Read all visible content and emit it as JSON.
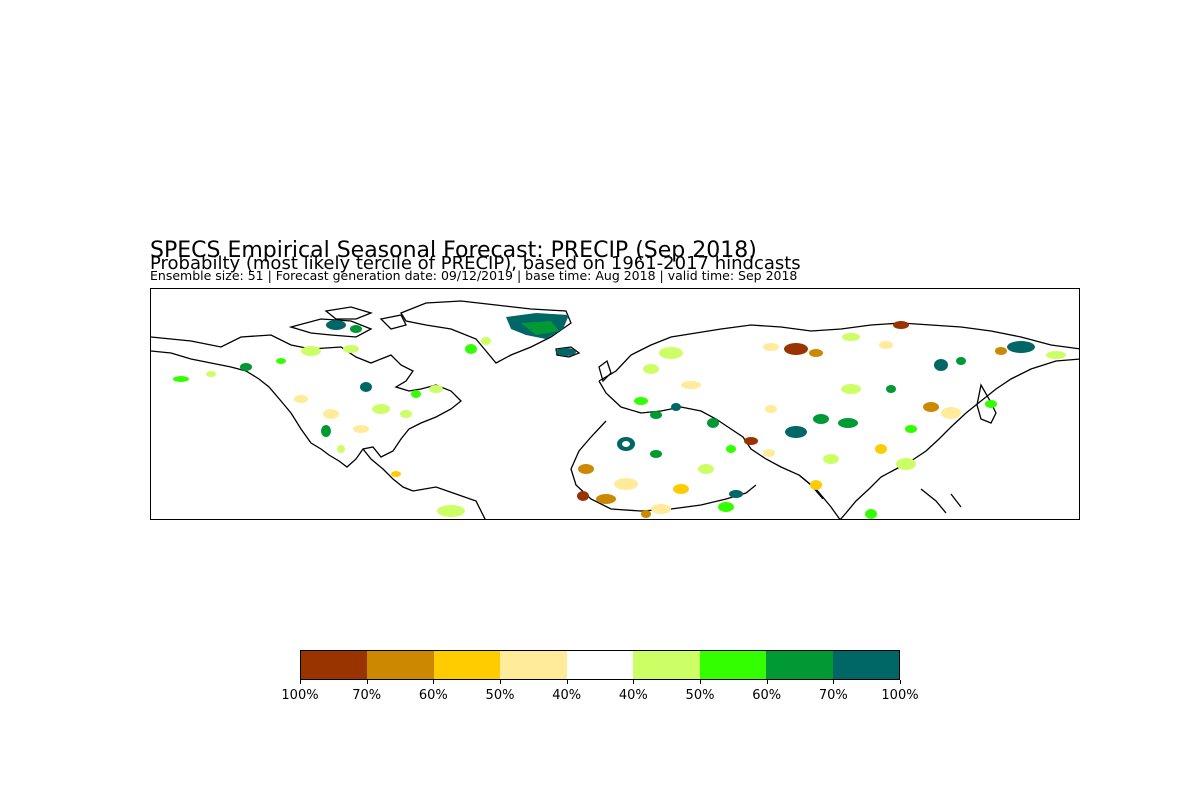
{
  "title": "SPECS Empirical Seasonal Forecast: PRECIP (Sep 2018)",
  "subtitle": "Probabilty (most likely tercile of PRECIP), based on 1961-2017 hindcasts",
  "meta": "Ensemble size: 51 | Forecast generation date: 09/12/2019 | base time: Aug 2018 | valid time: Sep 2018",
  "colorbar": {
    "colors": [
      "#993300",
      "#cc8800",
      "#ffcc00",
      "#ffeb99",
      "#ffffff",
      "#ccff66",
      "#33ff00",
      "#009933",
      "#006666"
    ],
    "labels": [
      "100%",
      "70%",
      "60%",
      "50%",
      "40%",
      "40%",
      "50%",
      "60%",
      "70%",
      "100%"
    ]
  }
}
